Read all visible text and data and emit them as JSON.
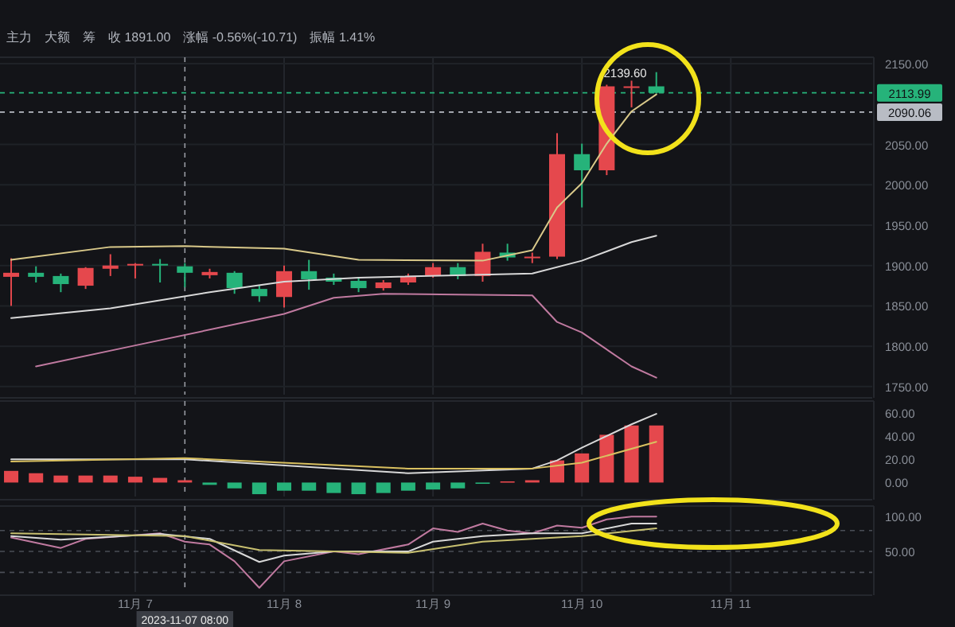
{
  "chart_data": [
    {
      "type": "candlestick",
      "tick_labels": "y",
      "grid": true,
      "xlim": [
        "2023-11-06T02:12",
        "2023-11-11T22:48"
      ],
      "xticks": [
        {
          "value": "2023-11-07",
          "label": null
        },
        {
          "value": "2023-11-08",
          "label": null
        },
        {
          "value": "2023-11-09",
          "label": null
        },
        {
          "value": "2023-11-10",
          "label": null
        },
        {
          "value": "2023-11-11",
          "label": null
        }
      ],
      "ylim": [
        1740,
        2158
      ],
      "yticks": [
        {
          "value": 1750,
          "label": "1750.00"
        },
        {
          "value": 1800,
          "label": "1800.00"
        },
        {
          "value": 1850,
          "label": "1850.00"
        },
        {
          "value": 1900,
          "label": "1900.00"
        },
        {
          "value": 1950,
          "label": "1950.00"
        },
        {
          "value": 2000,
          "label": "2000.00"
        },
        {
          "value": 2050,
          "label": "2050.00"
        },
        {
          "value": 2150,
          "label": "2150.00"
        }
      ],
      "x": [
        "2023-11-06T04:00",
        "2023-11-06T08:00",
        "2023-11-06T12:00",
        "2023-11-06T16:00",
        "2023-11-06T20:00",
        "2023-11-07T00:00",
        "2023-11-07T04:00",
        "2023-11-07T08:00",
        "2023-11-07T12:00",
        "2023-11-07T16:00",
        "2023-11-07T20:00",
        "2023-11-08T00:00",
        "2023-11-08T04:00",
        "2023-11-08T08:00",
        "2023-11-08T12:00",
        "2023-11-08T16:00",
        "2023-11-08T20:00",
        "2023-11-09T00:00",
        "2023-11-09T04:00",
        "2023-11-09T08:00",
        "2023-11-09T12:00",
        "2023-11-09T16:00",
        "2023-11-09T20:00",
        "2023-11-10T00:00",
        "2023-11-10T04:00",
        "2023-11-10T08:00",
        "2023-11-10T12:00"
      ],
      "ohlc": [
        [
          1886,
          1909,
          1850,
          1891
        ],
        [
          1891,
          1899,
          1879,
          1886
        ],
        [
          1887,
          1890,
          1867,
          1877
        ],
        [
          1875,
          1898,
          1871,
          1897
        ],
        [
          1896,
          1914,
          1887,
          1900
        ],
        [
          1900,
          1903,
          1884,
          1902
        ],
        [
          1902,
          1908,
          1879,
          1900
        ],
        [
          1899,
          1903,
          1873,
          1891
        ],
        [
          1888,
          1896,
          1884,
          1892
        ],
        [
          1891,
          1893,
          1865,
          1872
        ],
        [
          1871,
          1875,
          1855,
          1862
        ],
        [
          1861,
          1900,
          1848,
          1893
        ],
        [
          1893,
          1907,
          1870,
          1883
        ],
        [
          1885,
          1890,
          1876,
          1880
        ],
        [
          1881,
          1884,
          1867,
          1872
        ],
        [
          1872,
          1882,
          1869,
          1879
        ],
        [
          1879,
          1890,
          1876,
          1887
        ],
        [
          1887,
          1903,
          1885,
          1898
        ],
        [
          1898,
          1903,
          1883,
          1887
        ],
        [
          1887,
          1927,
          1880,
          1917
        ],
        [
          1916,
          1927,
          1906,
          1910
        ],
        [
          1910,
          1916,
          1903,
          1911
        ],
        [
          1911,
          2064,
          1908,
          2038
        ],
        [
          2038,
          2051,
          1972,
          2018
        ],
        [
          2018,
          2124,
          2012,
          2122
        ],
        [
          2121,
          2129,
          2096,
          2122
        ],
        [
          2122,
          2139.6,
          2113,
          2113.99
        ]
      ],
      "colors": [
        "#e5484d",
        "#26b37a",
        "#26b37a",
        "#e5484d",
        "#e5484d",
        "#e5484d",
        "#26b37a",
        "#26b37a",
        "#e5484d",
        "#26b37a",
        "#26b37a",
        "#e5484d",
        "#26b37a",
        "#26b37a",
        "#26b37a",
        "#e5484d",
        "#e5484d",
        "#e5484d",
        "#26b37a",
        "#e5484d",
        "#26b37a",
        "#e5484d",
        "#e5484d",
        "#26b37a",
        "#e5484d",
        "#e5484d",
        "#26b37a"
      ],
      "series": [
        {
          "type": "line",
          "color": "#d9c98a",
          "x": [
            "2023-11-06T04:00",
            "2023-11-06T20:00",
            "2023-11-07T08:00",
            "2023-11-08T00:00",
            "2023-11-08T12:00",
            "2023-11-09T08:00",
            "2023-11-09T16:00",
            "2023-11-09T20:00",
            "2023-11-10T00:00",
            "2023-11-10T04:00",
            "2023-11-10T08:00",
            "2023-11-10T12:00"
          ],
          "values": [
            1907,
            1923,
            1924,
            1921,
            1907,
            1906,
            1919,
            1972,
            2002,
            2051,
            2091,
            2112
          ]
        },
        {
          "type": "line",
          "color": "#d8d8d8",
          "x": [
            "2023-11-06T04:00",
            "2023-11-06T20:00",
            "2023-11-07T12:00",
            "2023-11-08T00:00",
            "2023-11-08T12:00",
            "2023-11-09T16:00",
            "2023-11-10T00:00",
            "2023-11-10T08:00",
            "2023-11-10T12:00"
          ],
          "values": [
            1835,
            1847,
            1867,
            1880,
            1885,
            1890,
            1906,
            1929,
            1937
          ]
        },
        {
          "type": "line",
          "color": "#c07aa0",
          "x": [
            "2023-11-06T08:00",
            "2023-11-07T00:00",
            "2023-11-08T00:00",
            "2023-11-08T08:00",
            "2023-11-08T16:00",
            "2023-11-09T16:00",
            "2023-11-09T20:00",
            "2023-11-10T00:00",
            "2023-11-10T08:00",
            "2023-11-10T12:00"
          ],
          "values": [
            1775,
            1801,
            1840,
            1860,
            1865,
            1863,
            1830,
            1817,
            1775,
            1761
          ]
        }
      ],
      "ref_lines": [
        {
          "axis": "y",
          "value": 2113.99,
          "label": "2113.99",
          "color": "#26b37a",
          "line_style": "dashed"
        },
        {
          "axis": "y",
          "value": 2090.06,
          "label": "2090.06",
          "color": "#b8bcc4",
          "line_style": "dashed"
        },
        {
          "axis": "x",
          "value": "2023-11-07T08:00",
          "label": null,
          "color": "#b8bcc4",
          "line_style": "dashed"
        }
      ],
      "annotations": [
        "主力",
        "大额",
        "筹",
        "收 1891.00",
        "涨幅 -0.56%(-10.71)",
        "振幅 1.41%",
        {
          "text": "2139.60",
          "x": "2023-11-10T12:00",
          "y": 2139.6
        }
      ]
    },
    {
      "type": "bar",
      "tick_labels": "y",
      "grid": "x",
      "xlim": [
        "2023-11-06T02:12",
        "2023-11-11T22:48"
      ],
      "xticks": [
        {
          "value": "2023-11-07",
          "label": null
        },
        {
          "value": "2023-11-08",
          "label": null
        },
        {
          "value": "2023-11-09",
          "label": null
        },
        {
          "value": "2023-11-10",
          "label": null
        },
        {
          "value": "2023-11-11",
          "label": null
        }
      ],
      "ylim": [
        -12,
        70
      ],
      "yticks": [
        {
          "value": 0,
          "label": "0.00"
        },
        {
          "value": 20,
          "label": "20.00"
        },
        {
          "value": 40,
          "label": "40.00"
        },
        {
          "value": 60,
          "label": "60.00"
        }
      ],
      "x": [
        "2023-11-06T04:00",
        "2023-11-06T08:00",
        "2023-11-06T12:00",
        "2023-11-06T16:00",
        "2023-11-06T20:00",
        "2023-11-07T00:00",
        "2023-11-07T04:00",
        "2023-11-07T08:00",
        "2023-11-07T12:00",
        "2023-11-07T16:00",
        "2023-11-07T20:00",
        "2023-11-08T00:00",
        "2023-11-08T04:00",
        "2023-11-08T08:00",
        "2023-11-08T12:00",
        "2023-11-08T16:00",
        "2023-11-08T20:00",
        "2023-11-09T00:00",
        "2023-11-09T04:00",
        "2023-11-09T08:00",
        "2023-11-09T12:00",
        "2023-11-09T16:00",
        "2023-11-09T20:00",
        "2023-11-10T00:00",
        "2023-11-10T04:00",
        "2023-11-10T08:00",
        "2023-11-10T12:00"
      ],
      "values": [
        10,
        8,
        6,
        6,
        6,
        5,
        4,
        2,
        -2,
        -5,
        -10,
        -7,
        -7,
        -9,
        -10,
        -9,
        -7,
        -6,
        -5,
        -1,
        1,
        2,
        19,
        25,
        41,
        49,
        49
      ],
      "colors": [
        "#e5484d",
        "#e5484d",
        "#e5484d",
        "#e5484d",
        "#e5484d",
        "#e5484d",
        "#e5484d",
        "#e5484d",
        "#26b37a",
        "#26b37a",
        "#26b37a",
        "#26b37a",
        "#26b37a",
        "#26b37a",
        "#26b37a",
        "#26b37a",
        "#26b37a",
        "#26b37a",
        "#26b37a",
        "#26b37a",
        "#e5484d",
        "#e5484d",
        "#e5484d",
        "#e5484d",
        "#e5484d",
        "#e5484d",
        "#e5484d"
      ],
      "series": [
        {
          "type": "line",
          "color": "#d8d8d8",
          "x": [
            "2023-11-06T04:00",
            "2023-11-07T08:00",
            "2023-11-08T20:00",
            "2023-11-09T16:00",
            "2023-11-09T20:00",
            "2023-11-10T00:00",
            "2023-11-10T08:00",
            "2023-11-10T12:00"
          ],
          "values": [
            20,
            20,
            8,
            12,
            19,
            30,
            50,
            59
          ]
        },
        {
          "type": "line",
          "color": "#d9c060",
          "x": [
            "2023-11-06T04:00",
            "2023-11-07T08:00",
            "2023-11-08T20:00",
            "2023-11-09T16:00",
            "2023-11-10T00:00",
            "2023-11-10T12:00"
          ],
          "values": [
            18,
            21,
            12,
            12,
            17,
            35
          ]
        }
      ],
      "ref_lines": [
        {
          "axis": "x",
          "value": "2023-11-07T08:00",
          "label": null,
          "color": "#b8bcc4",
          "line_style": "dashed"
        }
      ]
    },
    {
      "type": "line",
      "grid": "x",
      "xlim": [
        "2023-11-06T02:12",
        "2023-11-11T22:48"
      ],
      "xticks": [
        {
          "value": "2023-11-07",
          "label": "11月 7"
        },
        {
          "value": "2023-11-08",
          "label": "11月 8"
        },
        {
          "value": "2023-11-09",
          "label": "11月 9"
        },
        {
          "value": "2023-11-10",
          "label": "11月 10"
        },
        {
          "value": "2023-11-11",
          "label": "11月 11"
        }
      ],
      "ylim": [
        -8,
        115
      ],
      "yticks": [
        {
          "value": 50,
          "label": "50.00"
        },
        {
          "value": 100,
          "label": "100.00"
        }
      ],
      "series": [
        {
          "color": "#c07aa0",
          "x": [
            "2023-11-06T04:00",
            "2023-11-06T12:00",
            "2023-11-06T16:00",
            "2023-11-07T04:00",
            "2023-11-07T08:00",
            "2023-11-07T12:00",
            "2023-11-07T16:00",
            "2023-11-07T20:00",
            "2023-11-08T00:00",
            "2023-11-08T08:00",
            "2023-11-08T12:00",
            "2023-11-08T20:00",
            "2023-11-09T00:00",
            "2023-11-09T04:00",
            "2023-11-09T08:00",
            "2023-11-09T12:00",
            "2023-11-09T16:00",
            "2023-11-09T20:00",
            "2023-11-10T00:00",
            "2023-11-10T04:00",
            "2023-11-10T08:00",
            "2023-11-10T12:00"
          ],
          "values": [
            70,
            55,
            68,
            76,
            64,
            60,
            36,
            -2,
            36,
            50,
            46,
            60,
            83,
            78,
            90,
            80,
            76,
            87,
            84,
            96,
            100,
            100
          ]
        },
        {
          "color": "#d8d8d8",
          "x": [
            "2023-11-06T04:00",
            "2023-11-06T12:00",
            "2023-11-07T04:00",
            "2023-11-07T12:00",
            "2023-11-07T20:00",
            "2023-11-08T00:00",
            "2023-11-08T08:00",
            "2023-11-08T20:00",
            "2023-11-09T00:00",
            "2023-11-09T08:00",
            "2023-11-09T16:00",
            "2023-11-10T00:00",
            "2023-11-10T08:00",
            "2023-11-10T12:00"
          ],
          "values": [
            72,
            67,
            75,
            68,
            35,
            44,
            50,
            50,
            64,
            72,
            76,
            76,
            90,
            90
          ]
        },
        {
          "color": "#c8c070",
          "x": [
            "2023-11-06T04:00",
            "2023-11-07T08:00",
            "2023-11-07T20:00",
            "2023-11-08T08:00",
            "2023-11-08T20:00",
            "2023-11-09T08:00",
            "2023-11-10T00:00",
            "2023-11-10T12:00"
          ],
          "values": [
            76,
            72,
            52,
            50,
            48,
            64,
            72,
            83
          ]
        }
      ],
      "ref_lines": [
        {
          "axis": "y",
          "value": 80,
          "label": null,
          "color": "#4a4e56",
          "line_style": "dashed"
        },
        {
          "axis": "y",
          "value": 50,
          "label": null,
          "color": "#4a4e56",
          "line_style": "dashed"
        },
        {
          "axis": "y",
          "value": 20,
          "label": null,
          "color": "#4a4e56",
          "line_style": "dashed"
        },
        {
          "axis": "x",
          "value": "2023-11-07T08:00",
          "label": "2023-11-07 08:00",
          "color": "#b8bcc4",
          "line_style": "dashed"
        }
      ]
    }
  ]
}
